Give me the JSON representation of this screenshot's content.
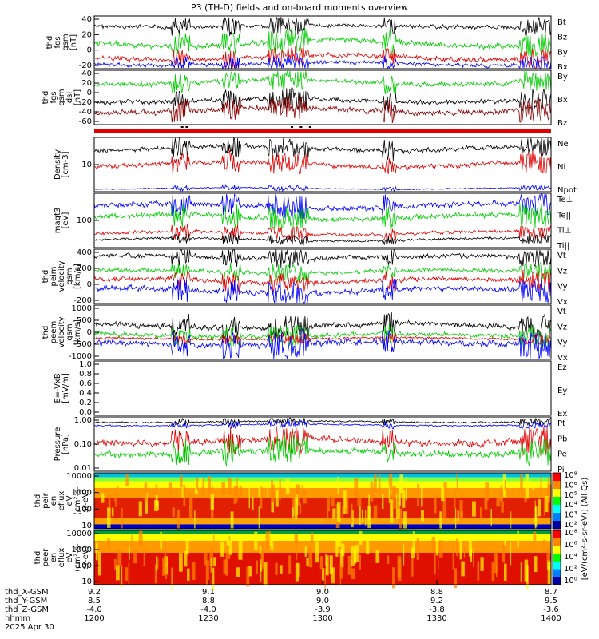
{
  "title": "P3 (TH-D) fields and on-board moments overview",
  "panels": [
    {
      "id": "fgs_gsm",
      "ylabel": [
        "thd",
        "fgs",
        "gsm",
        "[nT]"
      ],
      "ticks": [
        "40",
        "20",
        "0",
        "-20"
      ],
      "legend": [
        {
          "label": "Bt",
          "color": "#000000"
        },
        {
          "label": "Bz",
          "color": "#e00000"
        },
        {
          "label": "By",
          "color": "#00cc00"
        },
        {
          "label": "Bx",
          "color": "#0000ff"
        }
      ]
    },
    {
      "id": "fgs_gsm_dsl",
      "ylabel": [
        "thd",
        "fgs",
        "gsm",
        "dsl",
        "[nT]"
      ],
      "ticks": [
        "40",
        "20",
        "0",
        "-20",
        "-40",
        "-60"
      ],
      "legend": [
        {
          "label": "By",
          "color": "#00cc00"
        },
        {
          "label": "Bx",
          "color": "#000000"
        },
        {
          "label": "Bz",
          "color": "#8b0000"
        }
      ]
    },
    {
      "id": "density",
      "ylabel": [
        "Density",
        "[cm-3]"
      ],
      "ticks": [
        "10"
      ],
      "legend": [
        {
          "label": "Ne",
          "color": "#e00000"
        },
        {
          "label": "Ni",
          "color": "#000000"
        },
        {
          "label": "Npot",
          "color": "#0000ff"
        }
      ]
    },
    {
      "id": "temp",
      "ylabel": [
        "magt3",
        "[eV]"
      ],
      "ticks": [
        "100"
      ],
      "legend": [
        {
          "label": "Te⊥",
          "color": "#e00000"
        },
        {
          "label": "Te||",
          "color": "#000000"
        },
        {
          "label": "Ti⊥",
          "color": "#00cc00"
        },
        {
          "label": "Ti||",
          "color": "#00cc00"
        }
      ]
    },
    {
      "id": "vi",
      "ylabel": [
        "thd",
        "peim",
        "velocity",
        "gsm",
        "[km/s]"
      ],
      "ticks": [
        "400",
        "200",
        "0",
        "-200"
      ],
      "legend": [
        {
          "label": "Vt",
          "color": "#000000"
        },
        {
          "label": "Vz",
          "color": "#e00000"
        },
        {
          "label": "Vy",
          "color": "#00cc00"
        },
        {
          "label": "Vx",
          "color": "#0000ff"
        }
      ]
    },
    {
      "id": "ve",
      "ylabel": [
        "thd",
        "peem",
        "velocity",
        "gsm",
        "[km/s]"
      ],
      "ticks": [
        "1000",
        "500",
        "0",
        "-500",
        "-1000"
      ],
      "legend": [
        {
          "label": "Vt",
          "color": "#000000"
        },
        {
          "label": "Vz",
          "color": "#e00000"
        },
        {
          "label": "Vy",
          "color": "#00cc00"
        },
        {
          "label": "Vx",
          "color": "#0000ff"
        }
      ]
    },
    {
      "id": "efield",
      "ylabel": [
        "E=-VxB",
        "[mV/m]"
      ],
      "ticks": [
        "1.0",
        "0.8",
        "0.6",
        "0.4",
        "0.2",
        "0.0"
      ],
      "legend": [
        {
          "label": "Ez",
          "color": "#e00000"
        },
        {
          "label": "Ey",
          "color": "#00cc00"
        },
        {
          "label": "Ex",
          "color": "#0000ff"
        }
      ]
    },
    {
      "id": "pressure",
      "ylabel": [
        "Pressure",
        "[nPa]"
      ],
      "ticks": [
        "1.00",
        "0.10",
        "0.01"
      ],
      "legend": [
        {
          "label": "Pt",
          "color": "#000000"
        },
        {
          "label": "Pb",
          "color": "#e00000"
        },
        {
          "label": "Pe",
          "color": "#00cc00"
        },
        {
          "label": "Pi",
          "color": "#0000ff"
        }
      ]
    },
    {
      "id": "peir",
      "ylabel": [
        "thd",
        "peir",
        "en",
        "eflux",
        "eV",
        "(cm²-s-",
        "sr-eV)"
      ],
      "ticks": [
        "10000",
        "1000",
        "100",
        "10"
      ],
      "colorbar": [
        "10⁸",
        "10⁶",
        "10⁵",
        "10⁴",
        "10³",
        "10²"
      ]
    },
    {
      "id": "peer",
      "ylabel": [
        "thd",
        "peer",
        "en",
        "eflux",
        "eV",
        "(cm²-s-",
        "sr-eV)"
      ],
      "ticks": [
        "10000",
        "1000",
        "100",
        "10"
      ],
      "colorbar": [
        "10⁸",
        "10⁶",
        "10⁴",
        "10²",
        "10⁰"
      ]
    }
  ],
  "colorbar_label": "[eV/(cm²-s-sr-eV)] (All Qs)",
  "xaxis": {
    "row_labels": [
      "thd_X-GSM",
      "thd_Y-GSM",
      "thd_Z-GSM",
      "hhmm",
      "2025 Apr 30"
    ],
    "columns": [
      {
        "x": "9.2",
        "y": "8.5",
        "z": "-4.0",
        "t": "1200"
      },
      {
        "x": "9.1",
        "y": "8.8",
        "z": "-4.0",
        "t": "1230"
      },
      {
        "x": "9.0",
        "y": "9.0",
        "z": "-3.9",
        "t": "1300"
      },
      {
        "x": "8.8",
        "y": "9.2",
        "z": "-3.8",
        "t": "1330"
      },
      {
        "x": "8.7",
        "y": "9.5",
        "z": "-3.6",
        "t": "1400"
      }
    ]
  }
}
